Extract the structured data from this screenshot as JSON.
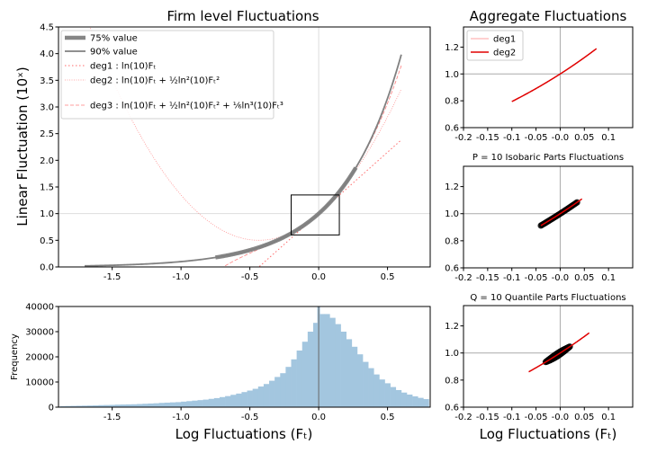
{
  "chart_data": [
    {
      "type": "line",
      "title": "Firm level Fluctuations",
      "xlabel": "",
      "ylabel": "Linear Fluctuation (10ˣ)",
      "xlim": [
        -1.89,
        0.81
      ],
      "ylim": [
        0,
        4.5
      ],
      "xticks": [
        "-1.5",
        "-1.0",
        "-0.5",
        "0.0",
        "0.5"
      ],
      "yticks": [
        "0.0",
        "0.5",
        "1.0",
        "1.5",
        "2.0",
        "2.5",
        "3.0",
        "3.5",
        "4.0",
        "4.5"
      ],
      "legend_position": "top-left",
      "series": [
        {
          "name": "75% value",
          "function": "10^x",
          "x_range": [
            -0.75,
            0.27
          ],
          "color": "#808080",
          "style": "thick"
        },
        {
          "name": "90% value",
          "function": "10^x",
          "x_range": [
            -1.7,
            0.6
          ],
          "color": "#808080",
          "style": "solid"
        },
        {
          "name": "deg1 : ln(10)Fₜ",
          "function": "1+ln(10)x",
          "x_range": [
            -1.7,
            0.6
          ],
          "color": "#ff6b6b",
          "style": "dotted"
        },
        {
          "name": "deg2 : ln(10)Fₜ + ½ln²(10)Fₜ²",
          "function": "1+ln(10)x+½(ln(10)x)²",
          "x_range": [
            -1.7,
            0.6
          ],
          "color": "#ff9090",
          "style": "dotted"
        },
        {
          "name": "deg3 : ln(10)Fₜ + ½ln²(10)Fₜ² + ⅙ln³(10)Fₜ³",
          "function": "1+ln(10)x+½(ln(10)x)²+⅙(ln(10)x)³",
          "x_range": [
            -1.7,
            0.6
          ],
          "color": "#ff8080",
          "style": "dashed"
        }
      ],
      "inset_box": {
        "x": [
          -0.2,
          0.15
        ],
        "y": [
          0.6,
          1.35
        ]
      },
      "reference_lines": {
        "x": 0,
        "y": 1
      }
    },
    {
      "type": "bar",
      "title": "",
      "xlabel": "Log Fluctuations (Fₜ)",
      "ylabel": "Frequency",
      "xlim": [
        -1.89,
        0.81
      ],
      "ylim": [
        0,
        40000
      ],
      "xticks": [
        "-1.5",
        "-1.0",
        "-0.5",
        "0.0",
        "0.5"
      ],
      "yticks": [
        "0",
        "10000",
        "20000",
        "30000",
        "40000"
      ],
      "color": "#a3c6df",
      "bin_start": -1.88,
      "bin_width": 0.04,
      "values": [
        400,
        450,
        500,
        550,
        600,
        650,
        700,
        800,
        850,
        900,
        1000,
        1050,
        1100,
        1150,
        1250,
        1350,
        1450,
        1550,
        1700,
        1800,
        1900,
        2000,
        2200,
        2400,
        2600,
        2800,
        3000,
        3300,
        3600,
        4000,
        4400,
        4900,
        5400,
        6000,
        6600,
        7300,
        8200,
        9200,
        10500,
        12000,
        13500,
        16000,
        19000,
        22500,
        26000,
        30000,
        33500,
        37000,
        37000,
        35500,
        33000,
        30000,
        27000,
        24000,
        21000,
        18000,
        15500,
        13000,
        11000,
        9500,
        8000,
        6800,
        5800,
        5000,
        4300,
        3700,
        3200
      ],
      "spike": {
        "x": 0,
        "value": 42000
      },
      "reference_lines": {
        "x": 0
      }
    },
    {
      "type": "line",
      "title": "Aggregate Fluctuations",
      "xlim": [
        -0.2,
        0.15
      ],
      "ylim": [
        0.6,
        1.35
      ],
      "xticks": [
        "-0.2",
        "-0.15",
        "-0.1",
        "-0.05",
        "-0.0",
        "0.05",
        "0.1"
      ],
      "yticks": [
        "0.6",
        "0.8",
        "1.0",
        "1.2"
      ],
      "legend_position": "top-left",
      "series": [
        {
          "name": "deg1",
          "x_range": [
            -0.1,
            0.075
          ],
          "color": "#ffc0c0"
        },
        {
          "name": "deg2",
          "x_range": [
            -0.1,
            0.075
          ],
          "color": "#e00000"
        }
      ]
    },
    {
      "type": "scatter",
      "title": "P = 10 Isobaric Parts Fluctuations",
      "xlim": [
        -0.2,
        0.15
      ],
      "ylim": [
        0.6,
        1.35
      ],
      "xticks": [
        "-0.2",
        "-0.15",
        "-0.1",
        "-0.05",
        "-0.0",
        "0.05",
        "0.1"
      ],
      "yticks": [
        "0.6",
        "0.8",
        "1.0",
        "1.2"
      ],
      "scatter_x_range": [
        -0.04,
        0.035
      ],
      "line_x_range": [
        -0.04,
        0.045
      ]
    },
    {
      "type": "scatter",
      "title": "Q = 10 Quantile Parts Fluctuations",
      "xlabel": "Log Fluctuations (Fₜ)",
      "xlim": [
        -0.2,
        0.15
      ],
      "ylim": [
        0.6,
        1.35
      ],
      "xticks": [
        "-0.2",
        "-0.15",
        "-0.1",
        "-0.05",
        "-0.0",
        "0.05",
        "0.1"
      ],
      "yticks": [
        "0.6",
        "0.8",
        "1.0",
        "1.2"
      ],
      "scatter_x_range": [
        -0.03,
        0.02
      ],
      "line_x_range": [
        -0.065,
        0.06
      ]
    }
  ]
}
